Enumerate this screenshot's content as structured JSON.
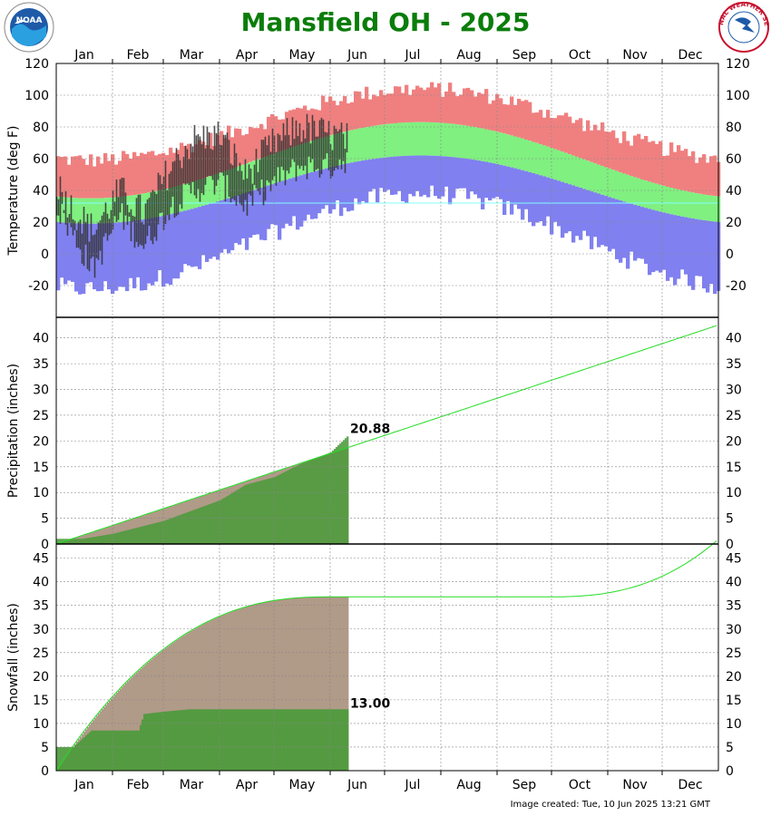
{
  "title": "Mansfield OH - 2025",
  "footer": "Image created: Tue, 10 Jun 2025 13:21 GMT",
  "logos": {
    "left": "NOAA",
    "right": "NATIONAL WEATHER SERVICE"
  },
  "months": [
    "Jan",
    "Feb",
    "Mar",
    "Apr",
    "May",
    "Jun",
    "Jul",
    "Aug",
    "Sep",
    "Oct",
    "Nov",
    "Dec"
  ],
  "colors": {
    "record_high": "#f08080",
    "normal": "#80f080",
    "record_low": "#8080f0",
    "observed": "#303030",
    "precip_normal_area": "#b09a88",
    "observed_fill": "#4a9a3a",
    "normal_line": "#22dd22",
    "freeze_line": "#7fffff",
    "grid": "#888888",
    "title": "#0a7d0a"
  },
  "chart_data": [
    {
      "type": "area",
      "name": "temperature",
      "ylabel": "Temperature (deg F)",
      "ylim": [
        -40,
        120
      ],
      "yticks": [
        -20,
        0,
        20,
        40,
        60,
        80,
        100,
        120
      ],
      "normal_high_range": [
        35,
        83
      ],
      "normal_low_range": [
        19,
        62
      ],
      "record_high_peak": 104,
      "record_low_min": -22,
      "freeze_line": 32,
      "observed_through": "2025-06-10",
      "observed_samples": [
        {
          "x": "Jan 01",
          "high": 45,
          "low": 30
        },
        {
          "x": "Jan 10",
          "high": 28,
          "low": 12
        },
        {
          "x": "Jan 21",
          "high": 15,
          "low": -10
        },
        {
          "x": "Feb 05",
          "high": 40,
          "low": 25
        },
        {
          "x": "Feb 18",
          "high": 25,
          "low": 5
        },
        {
          "x": "Mar 05",
          "high": 55,
          "low": 30
        },
        {
          "x": "Mar 17",
          "high": 72,
          "low": 40
        },
        {
          "x": "Apr 01",
          "high": 75,
          "low": 45
        },
        {
          "x": "Apr 15",
          "high": 50,
          "low": 30
        },
        {
          "x": "May 01",
          "high": 70,
          "low": 45
        },
        {
          "x": "May 15",
          "high": 80,
          "low": 55
        },
        {
          "x": "Jun 01",
          "high": 75,
          "low": 55
        },
        {
          "x": "Jun 10",
          "high": 72,
          "low": 60
        }
      ]
    },
    {
      "type": "line",
      "name": "precipitation",
      "ylabel": "Precipitation (inches)",
      "ylim": [
        0,
        44
      ],
      "yticks": [
        0,
        5,
        10,
        15,
        20,
        25,
        30,
        35,
        40
      ],
      "normal_annual_total": 42.5,
      "observed_total": 20.88,
      "observed_total_label": "20.88",
      "observed_cumulative": [
        {
          "x": "Jan 15",
          "y": 1.0
        },
        {
          "x": "Feb 01",
          "y": 2.0
        },
        {
          "x": "Mar 01",
          "y": 4.5
        },
        {
          "x": "Apr 01",
          "y": 8.5
        },
        {
          "x": "Apr 15",
          "y": 11.5
        },
        {
          "x": "May 01",
          "y": 13.0
        },
        {
          "x": "May 15",
          "y": 15.5
        },
        {
          "x": "Jun 01",
          "y": 17.8
        },
        {
          "x": "Jun 10",
          "y": 20.88
        }
      ]
    },
    {
      "type": "line",
      "name": "snowfall",
      "ylabel": "Snowfall (inches)",
      "ylim": [
        0,
        48
      ],
      "yticks": [
        0,
        5,
        10,
        15,
        20,
        25,
        30,
        35,
        40,
        45
      ],
      "normal_season_total_spring": 36.8,
      "normal_end_of_year": 49,
      "observed_total": 13.0,
      "observed_total_label": "13.00",
      "observed_cumulative": [
        {
          "x": "Jan 10",
          "y": 5.0
        },
        {
          "x": "Jan 20",
          "y": 8.5
        },
        {
          "x": "Feb 15",
          "y": 8.5
        },
        {
          "x": "Feb 18",
          "y": 12.0
        },
        {
          "x": "Mar 01",
          "y": 12.5
        },
        {
          "x": "Mar 15",
          "y": 13.0
        },
        {
          "x": "Jun 10",
          "y": 13.0
        }
      ]
    }
  ]
}
